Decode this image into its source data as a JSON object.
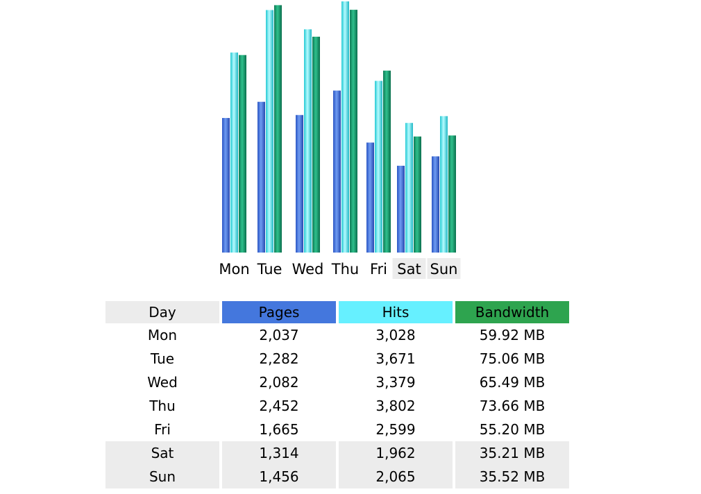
{
  "table": {
    "headers": {
      "day": "Day",
      "pages": "Pages",
      "hits": "Hits",
      "bandwidth": "Bandwidth"
    },
    "rows": [
      {
        "day": "Mon",
        "pages": "2,037",
        "hits": "3,028",
        "bandwidth": "59.92 MB",
        "weekend": false
      },
      {
        "day": "Tue",
        "pages": "2,282",
        "hits": "3,671",
        "bandwidth": "75.06 MB",
        "weekend": false
      },
      {
        "day": "Wed",
        "pages": "2,082",
        "hits": "3,379",
        "bandwidth": "65.49 MB",
        "weekend": false
      },
      {
        "day": "Thu",
        "pages": "2,452",
        "hits": "3,802",
        "bandwidth": "73.66 MB",
        "weekend": false
      },
      {
        "day": "Fri",
        "pages": "1,665",
        "hits": "2,599",
        "bandwidth": "55.20 MB",
        "weekend": false
      },
      {
        "day": "Sat",
        "pages": "1,314",
        "hits": "1,962",
        "bandwidth": "35.21 MB",
        "weekend": true
      },
      {
        "day": "Sun",
        "pages": "1,456",
        "hits": "2,065",
        "bandwidth": "35.52 MB",
        "weekend": true
      }
    ]
  },
  "chart_data": {
    "type": "bar",
    "title": "",
    "xlabel": "",
    "ylabel": "",
    "categories": [
      "Mon",
      "Tue",
      "Wed",
      "Thu",
      "Fri",
      "Sat",
      "Sun"
    ],
    "weekend_categories": [
      "Sat",
      "Sun"
    ],
    "series": [
      {
        "name": "Pages",
        "unit": "count",
        "color": "#3b6fd8",
        "values": [
          2037,
          2282,
          2082,
          2452,
          1665,
          1314,
          1456
        ]
      },
      {
        "name": "Hits",
        "unit": "count",
        "color": "#4fe0ea",
        "values": [
          3028,
          3671,
          3379,
          3802,
          2599,
          1962,
          2065
        ]
      },
      {
        "name": "Bandwidth",
        "unit": "MB",
        "color": "#14916a",
        "values": [
          59.92,
          75.06,
          65.49,
          73.66,
          55.2,
          35.21,
          35.52
        ]
      }
    ],
    "grid": false,
    "legend": "none"
  },
  "colors": {
    "weekend_bg": "#ececec",
    "pages_header": "#4477dd",
    "hits_header": "#66f0ff",
    "bandwidth_header": "#2ea44f"
  }
}
